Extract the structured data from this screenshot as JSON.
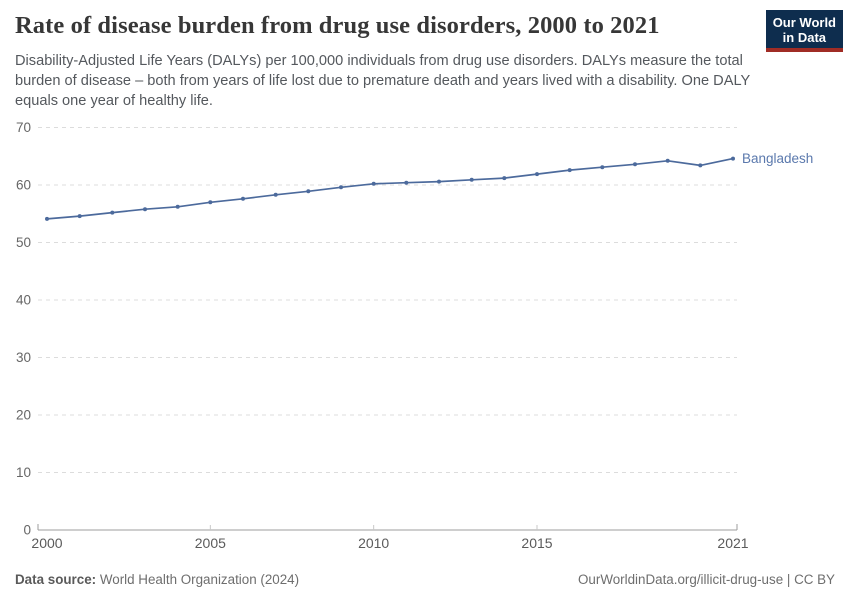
{
  "header": {
    "title": "Rate of disease burden from drug use disorders, 2000 to 2021",
    "subtitle": "Disability-Adjusted Life Years (DALYs) per 100,000 individuals from drug use disorders. DALYs measure the total burden of disease – both from years of life lost due to premature death and years lived with a disability. One DALY equals one year of healthy life.",
    "logo": {
      "line1": "Our World",
      "line2": "in Data"
    }
  },
  "chart_data": {
    "type": "line",
    "title": "Rate of disease burden from drug use disorders, 2000 to 2021",
    "xlabel": "",
    "ylabel": "DALYs per 100,000 individuals",
    "x": [
      2000,
      2001,
      2002,
      2003,
      2004,
      2005,
      2006,
      2007,
      2008,
      2009,
      2010,
      2011,
      2012,
      2013,
      2014,
      2015,
      2016,
      2017,
      2018,
      2019,
      2020,
      2021
    ],
    "series": [
      {
        "name": "Bangladesh",
        "color": "#4c6a9c",
        "values": [
          54.1,
          54.6,
          55.2,
          55.8,
          56.2,
          57.0,
          57.6,
          58.3,
          58.9,
          59.6,
          60.2,
          60.4,
          60.6,
          60.9,
          61.2,
          61.9,
          62.6,
          63.1,
          63.6,
          64.2,
          63.4,
          64.6
        ]
      }
    ],
    "x_ticks": [
      2000,
      2005,
      2010,
      2015,
      2021
    ],
    "y_ticks": [
      0,
      10,
      20,
      30,
      40,
      50,
      60,
      70
    ],
    "xlim": [
      2000,
      2021
    ],
    "ylim": [
      0,
      70
    ],
    "grid": true,
    "grid_style": "dashed",
    "legend_position": "end-of-line"
  },
  "footer": {
    "source_label": "Data source:",
    "source_value": "World Health Organization (2024)",
    "right_text": "OurWorldinData.org/illicit-drug-use | CC BY"
  },
  "colors": {
    "line": "#4c6a9c",
    "entity_label": "#5b79ad",
    "gridline": "#dcdcdc",
    "axis": "#9c9c9c",
    "tick_label": "#666666",
    "x_tick_label": "#5b5b5b",
    "logo_navy": "#0e2d4e",
    "logo_red": "#a02c25"
  }
}
